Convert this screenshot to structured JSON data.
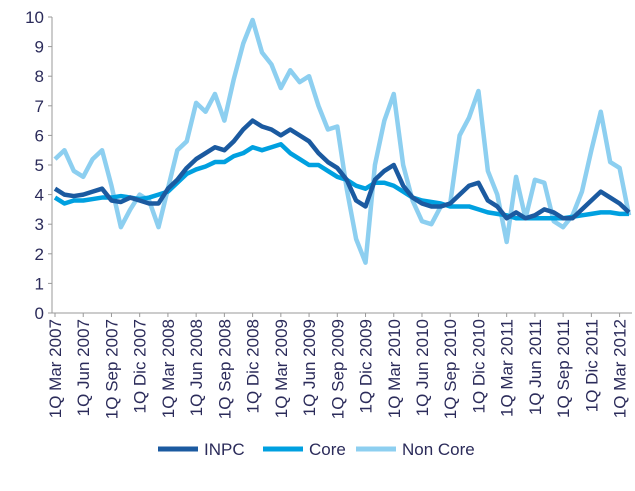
{
  "chart_data": {
    "type": "line",
    "categories": [
      "1Q Mar 2007",
      null,
      null,
      "1Q Jun 2007",
      null,
      null,
      "1Q Sep 2007",
      null,
      null,
      "1Q Dic 2007",
      null,
      null,
      "1Q Mar 2008",
      null,
      null,
      "1Q Jun 2008",
      null,
      null,
      "1Q Sep 2008",
      null,
      null,
      "1Q Dic 2008",
      null,
      null,
      "1Q Mar 2009",
      null,
      null,
      "1Q Jun 2009",
      null,
      null,
      "1Q Sep 2009",
      null,
      null,
      "1Q Dic 2009",
      null,
      null,
      "1Q Mar 2010",
      null,
      null,
      "1Q Jun 2010",
      null,
      null,
      "1Q Sep 2010",
      null,
      null,
      "1Q Dic 2010",
      null,
      null,
      "1Q Mar 2011",
      null,
      null,
      "1Q Jun 2011",
      null,
      null,
      "1Q Sep 2011",
      null,
      null,
      "1Q Dic 2011",
      null,
      null,
      "1Q Mar 2012",
      null
    ],
    "series": [
      {
        "name": "INPC",
        "color": "#1b5aa0",
        "values": [
          4.2,
          4.0,
          3.95,
          4.0,
          4.1,
          4.2,
          3.8,
          3.75,
          3.9,
          3.8,
          3.7,
          3.7,
          4.2,
          4.5,
          4.9,
          5.2,
          5.4,
          5.6,
          5.5,
          5.8,
          6.2,
          6.5,
          6.3,
          6.2,
          6.0,
          6.2,
          6.0,
          5.8,
          5.4,
          5.1,
          4.9,
          4.5,
          3.8,
          3.6,
          4.5,
          4.8,
          5.0,
          4.3,
          3.9,
          3.7,
          3.6,
          3.6,
          3.7,
          4.0,
          4.3,
          4.4,
          3.8,
          3.6,
          3.2,
          3.4,
          3.2,
          3.3,
          3.5,
          3.4,
          3.2,
          3.2,
          3.5,
          3.8,
          4.1,
          3.9,
          3.7,
          3.4
        ]
      },
      {
        "name": "Core",
        "color": "#00a0e0",
        "values": [
          3.9,
          3.7,
          3.8,
          3.8,
          3.85,
          3.9,
          3.9,
          3.95,
          3.9,
          3.85,
          3.9,
          4.0,
          4.1,
          4.4,
          4.7,
          4.85,
          4.95,
          5.1,
          5.1,
          5.3,
          5.4,
          5.6,
          5.5,
          5.6,
          5.7,
          5.4,
          5.2,
          5.0,
          5.0,
          4.8,
          4.6,
          4.5,
          4.3,
          4.2,
          4.4,
          4.4,
          4.3,
          4.1,
          3.9,
          3.8,
          3.75,
          3.7,
          3.6,
          3.6,
          3.6,
          3.5,
          3.4,
          3.35,
          3.3,
          3.2,
          3.2,
          3.2,
          3.2,
          3.2,
          3.2,
          3.25,
          3.3,
          3.35,
          3.4,
          3.4,
          3.35,
          3.35
        ]
      },
      {
        "name": "Non Core",
        "color": "#8dcff0",
        "values": [
          5.2,
          5.5,
          4.8,
          4.6,
          5.2,
          5.5,
          4.3,
          2.9,
          3.5,
          4.0,
          3.8,
          2.9,
          4.2,
          5.5,
          5.8,
          7.1,
          6.8,
          7.4,
          6.5,
          7.9,
          9.1,
          9.9,
          8.8,
          8.4,
          7.6,
          8.2,
          7.8,
          8.0,
          7.0,
          6.2,
          6.3,
          4.2,
          2.5,
          1.7,
          5.0,
          6.5,
          7.4,
          5.0,
          3.8,
          3.1,
          3.0,
          3.6,
          3.7,
          6.0,
          6.6,
          7.5,
          4.8,
          4.0,
          2.4,
          4.6,
          3.2,
          4.5,
          4.4,
          3.1,
          2.9,
          3.3,
          4.1,
          5.5,
          6.8,
          5.1,
          4.9,
          3.3
        ]
      }
    ],
    "ylim": [
      0,
      10
    ],
    "yticks": [
      0,
      1,
      2,
      3,
      4,
      5,
      6,
      7,
      8,
      9,
      10
    ],
    "legend": "bottom"
  }
}
